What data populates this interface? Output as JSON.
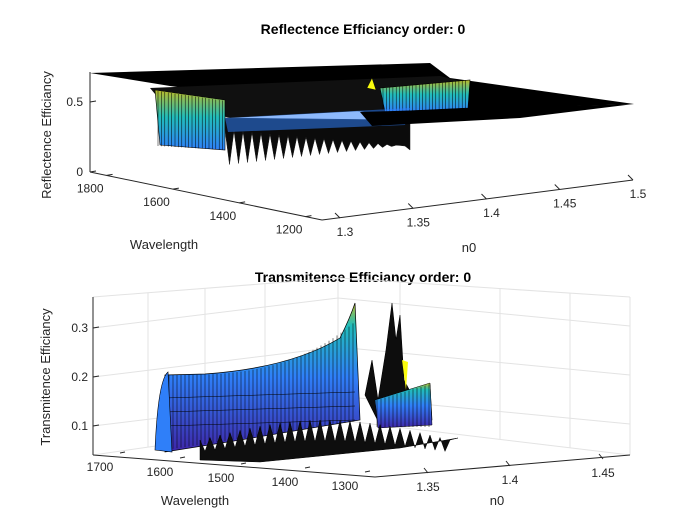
{
  "chart_data": [
    {
      "type": "surface",
      "title": "Reflectence Efficiancy order: 0",
      "xlabel": "n0",
      "ylabel": "Wavelength",
      "zlabel": "Reflectence Efficiancy",
      "x_ticks": [
        "1.3",
        "1.35",
        "1.4",
        "1.45",
        "1.5"
      ],
      "y_ticks": [
        "1200",
        "1400",
        "1600",
        "1800"
      ],
      "z_ticks": [
        "0",
        "0.5"
      ],
      "xlim": [
        1.3,
        1.5
      ],
      "ylim": [
        1150,
        1850
      ],
      "zlim": [
        0,
        0.72
      ],
      "grid": false,
      "colormap": [
        "#3e26a8",
        "#2f7ff9",
        "#21bdbb",
        "#bbbb28",
        "#f9fb0e"
      ]
    },
    {
      "type": "surface",
      "title": "Transmitence Efficiancy order: 0",
      "xlabel": "n0",
      "ylabel": "Wavelength",
      "zlabel": "Transmitence Efficiancy",
      "x_ticks": [
        "1.35",
        "1.4",
        "1.45"
      ],
      "y_ticks": [
        "1300",
        "1400",
        "1500",
        "1600",
        "1700"
      ],
      "z_ticks": [
        "0.1",
        "0.2",
        "0.3"
      ],
      "xlim": [
        1.3,
        1.47
      ],
      "ylim": [
        1280,
        1750
      ],
      "zlim": [
        0.05,
        0.35
      ],
      "grid": true,
      "colormap": [
        "#3e26a8",
        "#2f7ff9",
        "#21bdbb",
        "#bbbb28",
        "#f9fb0e"
      ]
    }
  ]
}
